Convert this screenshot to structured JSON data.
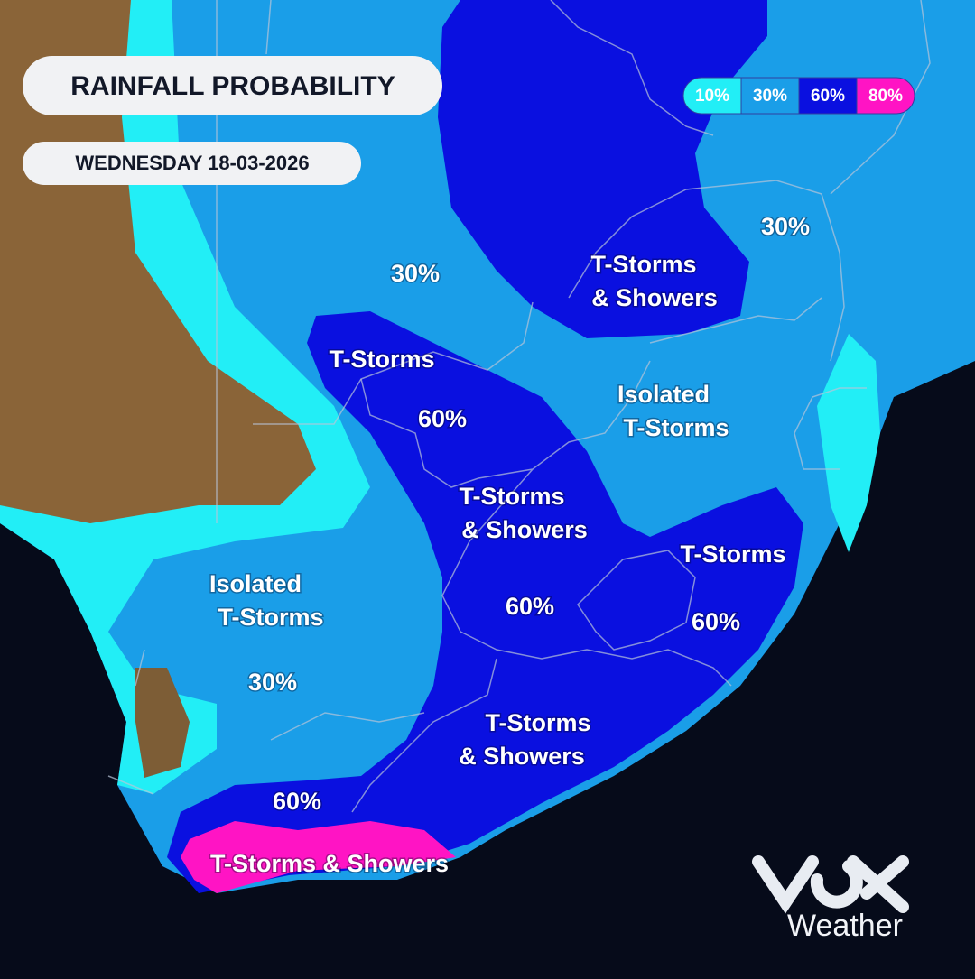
{
  "header": {
    "title": "RAINFALL PROBABILITY",
    "date": "WEDNESDAY 18-03-2026"
  },
  "legend": [
    {
      "label": "10%",
      "color": "#22eef6"
    },
    {
      "label": "30%",
      "color": "#1a9ee8"
    },
    {
      "label": "60%",
      "color": "#0a10e0"
    },
    {
      "label": "80%",
      "color": "#ff14c4"
    }
  ],
  "map_labels": [
    {
      "lines": [
        "30%"
      ]
    },
    {
      "lines": [
        "T-Storms",
        "& Showers"
      ]
    },
    {
      "lines": [
        "30%"
      ]
    },
    {
      "lines": [
        "T-Storms"
      ]
    },
    {
      "lines": [
        "60%"
      ]
    },
    {
      "lines": [
        "Isolated",
        "T-Storms"
      ]
    },
    {
      "lines": [
        "T-Storms",
        "& Showers"
      ]
    },
    {
      "lines": [
        "Isolated",
        "T-Storms"
      ]
    },
    {
      "lines": [
        "30%"
      ]
    },
    {
      "lines": [
        "60%"
      ]
    },
    {
      "lines": [
        "T-Storms"
      ]
    },
    {
      "lines": [
        "60%"
      ]
    },
    {
      "lines": [
        "T-Storms",
        "& Showers"
      ]
    },
    {
      "lines": [
        "60%"
      ]
    },
    {
      "lines": [
        "T-Storms & Showers"
      ]
    }
  ],
  "logo": {
    "text": "Weather"
  }
}
